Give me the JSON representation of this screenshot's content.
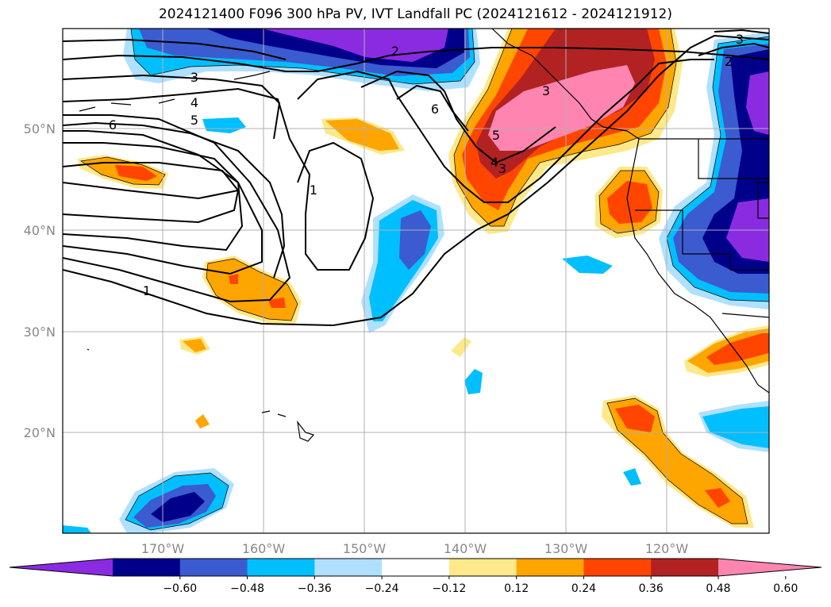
{
  "title": "2024121400 F096 300 hPa PV, IVT Landfall PC (2024121612 - 2024121912)",
  "lon_labels": [
    "170°W",
    "160°W",
    "150°W",
    "140°W",
    "130°W",
    "120°W"
  ],
  "lat_labels": [
    "20°N",
    "30°N",
    "40°N",
    "50°N"
  ],
  "colorbar": {
    "colors": [
      "#8a2be2",
      "#00008b",
      "#3b5bd0",
      "#00bfff",
      "#b0e0ff",
      "#ffffff",
      "#fde88a",
      "#ffa500",
      "#ff4500",
      "#b22222",
      "#ff85b0"
    ],
    "tick_labels": [
      "−0.60",
      "−0.48",
      "−0.36",
      "−0.24",
      "−0.12",
      "0.12",
      "0.24",
      "0.36",
      "0.48",
      "0.60"
    ]
  },
  "contour_labels": [
    "1",
    "1",
    "2",
    "2",
    "3",
    "3",
    "3",
    "4",
    "4",
    "5",
    "5",
    "6",
    "6",
    "3"
  ]
}
